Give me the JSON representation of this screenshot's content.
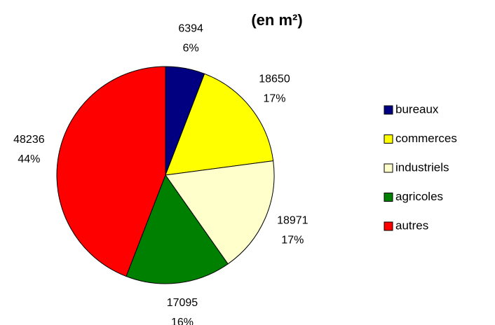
{
  "chart_data": {
    "type": "pie",
    "title": "(en m²)",
    "categories": [
      "bureaux",
      "commerces",
      "industriels",
      "agricoles",
      "autres"
    ],
    "values": [
      6394,
      18650,
      18971,
      17095,
      48236
    ],
    "percentages": [
      {
        "value": 6,
        "label": "6%"
      },
      {
        "value": 17,
        "label": "17%"
      },
      {
        "value": 17,
        "label": "17%"
      },
      {
        "value": 16,
        "label": "16%"
      },
      {
        "value": 44,
        "label": "44%"
      }
    ],
    "colors": [
      "#000080",
      "#ffff00",
      "#ffffcc",
      "#008000",
      "#ff0000"
    ]
  }
}
